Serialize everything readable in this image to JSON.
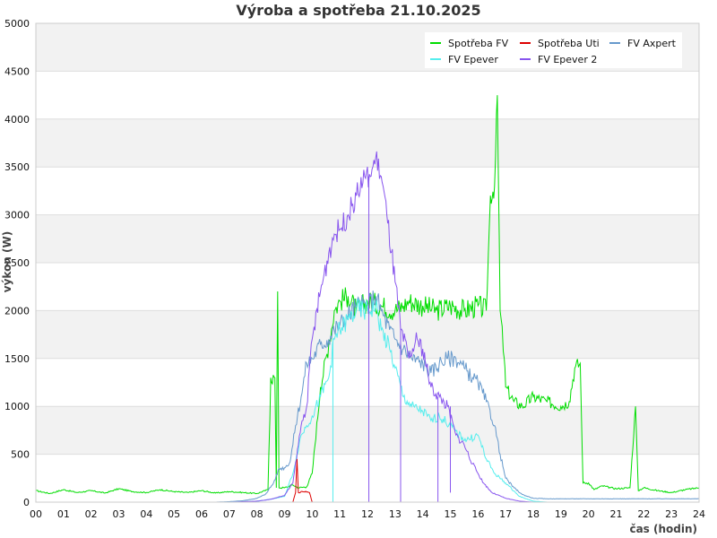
{
  "chart_data": {
    "type": "line",
    "title": "Výroba a spotřeba 21.10.2025",
    "xlabel": "čas (hodin)",
    "ylabel": "výkon (W)",
    "xlim": [
      0,
      24
    ],
    "ylim": [
      0,
      5000
    ],
    "x_ticks": [
      "00",
      "01",
      "02",
      "03",
      "04",
      "05",
      "06",
      "07",
      "08",
      "09",
      "10",
      "11",
      "12",
      "13",
      "14",
      "15",
      "16",
      "17",
      "18",
      "19",
      "20",
      "21",
      "22",
      "23",
      "24"
    ],
    "y_ticks": [
      "0",
      "500",
      "1000",
      "1500",
      "2000",
      "2500",
      "3000",
      "3500",
      "4000",
      "4500",
      "5000"
    ],
    "grid": "horizontal bands",
    "legend_position": "top-right",
    "series": [
      {
        "name": "Spotřeba FV",
        "color": "#00dd00",
        "points": [
          [
            0,
            120
          ],
          [
            0.5,
            90
          ],
          [
            1,
            130
          ],
          [
            1.5,
            100
          ],
          [
            2,
            120
          ],
          [
            2.5,
            95
          ],
          [
            3,
            140
          ],
          [
            3.5,
            110
          ],
          [
            4,
            100
          ],
          [
            4.5,
            130
          ],
          [
            5,
            110
          ],
          [
            5.5,
            100
          ],
          [
            6,
            120
          ],
          [
            6.5,
            95
          ],
          [
            7,
            110
          ],
          [
            7.5,
            100
          ],
          [
            8,
            90
          ],
          [
            8.4,
            130
          ],
          [
            8.5,
            1300
          ],
          [
            8.65,
            1300
          ],
          [
            8.7,
            150
          ],
          [
            8.75,
            2200
          ],
          [
            8.8,
            150
          ],
          [
            9,
            150
          ],
          [
            9.3,
            180
          ],
          [
            9.5,
            150
          ],
          [
            9.8,
            160
          ],
          [
            10,
            300
          ],
          [
            10.3,
            1200
          ],
          [
            10.6,
            1650
          ],
          [
            10.8,
            2000
          ],
          [
            11,
            2100
          ],
          [
            11.3,
            2150
          ],
          [
            11.6,
            2000
          ],
          [
            12,
            2100
          ],
          [
            12.5,
            2050
          ],
          [
            13,
            2000
          ],
          [
            13.3,
            2050
          ],
          [
            13.5,
            2100
          ],
          [
            14,
            2050
          ],
          [
            14.5,
            2000
          ],
          [
            15,
            2050
          ],
          [
            15.5,
            2000
          ],
          [
            16,
            2050
          ],
          [
            16.3,
            2000
          ],
          [
            16.45,
            3200
          ],
          [
            16.6,
            3300
          ],
          [
            16.7,
            4250
          ],
          [
            16.8,
            2000
          ],
          [
            16.95,
            1500
          ],
          [
            17,
            1200
          ],
          [
            17.3,
            1050
          ],
          [
            17.6,
            1000
          ],
          [
            18,
            1100
          ],
          [
            18.5,
            1050
          ],
          [
            19,
            1000
          ],
          [
            19.3,
            1050
          ],
          [
            19.5,
            1400
          ],
          [
            19.7,
            1450
          ],
          [
            19.8,
            200
          ],
          [
            20,
            200
          ],
          [
            20.2,
            130
          ],
          [
            20.5,
            170
          ],
          [
            20.8,
            150
          ],
          [
            21,
            140
          ],
          [
            21.5,
            150
          ],
          [
            21.7,
            1000
          ],
          [
            21.8,
            120
          ],
          [
            22,
            150
          ],
          [
            22.5,
            120
          ],
          [
            23,
            100
          ],
          [
            23.5,
            130
          ],
          [
            24,
            150
          ]
        ]
      },
      {
        "name": "Spotřeba Uti",
        "color": "#dd0000",
        "points": [
          [
            9.3,
            0
          ],
          [
            9.4,
            100
          ],
          [
            9.45,
            450
          ],
          [
            9.5,
            100
          ],
          [
            9.7,
            110
          ],
          [
            9.9,
            100
          ],
          [
            10,
            0
          ]
        ]
      },
      {
        "name": "FV Axpert",
        "color": "#6699cc",
        "points": [
          [
            0,
            0
          ],
          [
            6.5,
            0
          ],
          [
            7,
            5
          ],
          [
            7.5,
            15
          ],
          [
            8,
            40
          ],
          [
            8.3,
            80
          ],
          [
            8.6,
            200
          ],
          [
            8.8,
            350
          ],
          [
            9,
            360
          ],
          [
            9.2,
            420
          ],
          [
            9.4,
            800
          ],
          [
            9.6,
            1100
          ],
          [
            9.8,
            1450
          ],
          [
            10,
            1500
          ],
          [
            10.3,
            1650
          ],
          [
            10.6,
            1700
          ],
          [
            10.8,
            1800
          ],
          [
            11,
            1850
          ],
          [
            11.3,
            1950
          ],
          [
            11.6,
            2050
          ],
          [
            12,
            2050
          ],
          [
            12.3,
            2150
          ],
          [
            12.5,
            2000
          ],
          [
            12.8,
            1800
          ],
          [
            13,
            1700
          ],
          [
            13.3,
            1600
          ],
          [
            13.6,
            1500
          ],
          [
            14,
            1450
          ],
          [
            14.3,
            1350
          ],
          [
            14.6,
            1450
          ],
          [
            14.9,
            1500
          ],
          [
            15.2,
            1500
          ],
          [
            15.5,
            1400
          ],
          [
            15.8,
            1300
          ],
          [
            16,
            1250
          ],
          [
            16.3,
            1050
          ],
          [
            16.6,
            800
          ],
          [
            16.8,
            500
          ],
          [
            17,
            250
          ],
          [
            17.3,
            150
          ],
          [
            17.6,
            80
          ],
          [
            18,
            40
          ],
          [
            18.5,
            35
          ],
          [
            19,
            35
          ],
          [
            19.5,
            35
          ],
          [
            20,
            35
          ],
          [
            21,
            35
          ],
          [
            22,
            35
          ],
          [
            23,
            35
          ],
          [
            24,
            35
          ]
        ]
      },
      {
        "name": "FV Epever",
        "color": "#55eeee",
        "points": [
          [
            0,
            0
          ],
          [
            7,
            0
          ],
          [
            8,
            10
          ],
          [
            8.5,
            30
          ],
          [
            9,
            60
          ],
          [
            9.3,
            300
          ],
          [
            9.6,
            700
          ],
          [
            9.8,
            800
          ],
          [
            10,
            900
          ],
          [
            10.3,
            1100
          ],
          [
            10.6,
            1300
          ],
          [
            10.8,
            1700
          ],
          [
            11,
            1800
          ],
          [
            11.3,
            1900
          ],
          [
            11.6,
            2000
          ],
          [
            12,
            2000
          ],
          [
            12.3,
            2050
          ],
          [
            12.5,
            1800
          ],
          [
            12.8,
            1600
          ],
          [
            13,
            1400
          ],
          [
            13.3,
            1100
          ],
          [
            13.6,
            1000
          ],
          [
            14,
            950
          ],
          [
            14.3,
            850
          ],
          [
            14.6,
            900
          ],
          [
            15,
            800
          ],
          [
            15.3,
            700
          ],
          [
            15.6,
            650
          ],
          [
            16,
            700
          ],
          [
            16.3,
            450
          ],
          [
            16.6,
            300
          ],
          [
            17,
            200
          ],
          [
            17.5,
            60
          ],
          [
            18,
            10
          ],
          [
            18.5,
            0
          ],
          [
            24,
            0
          ]
        ]
      },
      {
        "name": "FV Epever 2",
        "color": "#8855ee",
        "points": [
          [
            0,
            0
          ],
          [
            7,
            0
          ],
          [
            8,
            10
          ],
          [
            8.5,
            30
          ],
          [
            9,
            70
          ],
          [
            9.3,
            200
          ],
          [
            9.6,
            800
          ],
          [
            9.8,
            1000
          ],
          [
            10,
            1700
          ],
          [
            10.3,
            2200
          ],
          [
            10.6,
            2600
          ],
          [
            10.8,
            2800
          ],
          [
            11,
            2850
          ],
          [
            11.3,
            3000
          ],
          [
            11.6,
            3200
          ],
          [
            11.9,
            3400
          ],
          [
            12.1,
            3400
          ],
          [
            12.3,
            3600
          ],
          [
            12.5,
            3400
          ],
          [
            12.7,
            3000
          ],
          [
            13,
            2300
          ],
          [
            13.2,
            1800
          ],
          [
            13.5,
            1500
          ],
          [
            13.8,
            1700
          ],
          [
            14,
            1600
          ],
          [
            14.3,
            1200
          ],
          [
            14.6,
            1100
          ],
          [
            14.9,
            1000
          ],
          [
            15.2,
            700
          ],
          [
            15.5,
            600
          ],
          [
            15.8,
            400
          ],
          [
            16,
            300
          ],
          [
            16.2,
            200
          ],
          [
            16.5,
            100
          ],
          [
            17,
            40
          ],
          [
            17.5,
            10
          ],
          [
            18,
            0
          ],
          [
            24,
            0
          ]
        ]
      }
    ]
  },
  "annotations": {
    "dips": [
      {
        "series": "FV Epever",
        "x": 10.75,
        "y": 0
      },
      {
        "series": "FV Epever 2",
        "x": 12.05,
        "y": 0
      },
      {
        "series": "FV Epever 2",
        "x": 13.2,
        "y": 0
      },
      {
        "series": "FV Epever 2",
        "x": 14.55,
        "y": 0
      },
      {
        "series": "FV Epever 2",
        "x": 15.0,
        "y": 100
      }
    ]
  }
}
